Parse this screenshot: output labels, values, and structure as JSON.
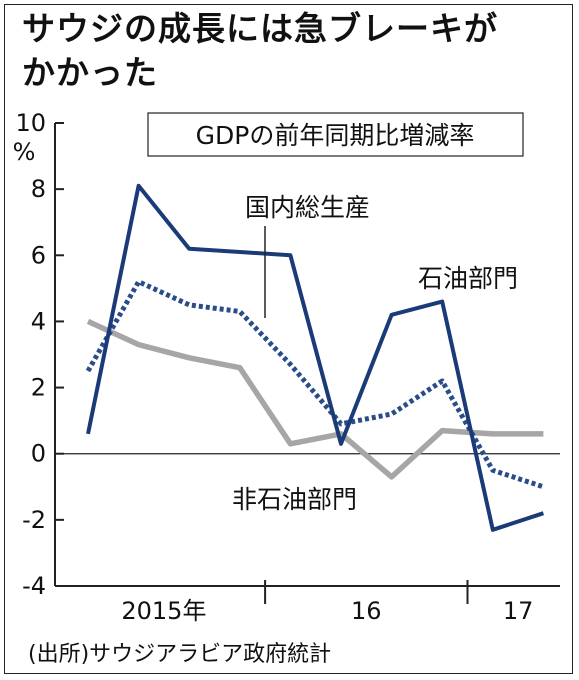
{
  "title_lines": [
    "サウジの成長には急ブレーキが",
    "かかった"
  ],
  "source": "(出所)サウジアラビア政府統計",
  "chart_data": {
    "type": "line",
    "legend_box": "GDPの前年同期比増減率",
    "ylabel": "%",
    "ylim": [
      -4,
      10
    ],
    "yticks": [
      -4,
      -2,
      0,
      2,
      4,
      6,
      8,
      10
    ],
    "x_groups": [
      {
        "label": "2015年",
        "start": 0,
        "end": 4
      },
      {
        "label": "16",
        "start": 4,
        "end": 8
      },
      {
        "label": "17",
        "start": 8,
        "end": 10
      }
    ],
    "x": [
      0,
      1,
      2,
      3,
      4,
      5,
      6,
      7,
      8,
      9
    ],
    "series": [
      {
        "name": "石油部門",
        "color": "#1a3a78",
        "style": "solid",
        "values": [
          0.6,
          8.1,
          6.2,
          6.1,
          6.0,
          0.3,
          4.2,
          4.6,
          -2.3,
          -1.8
        ]
      },
      {
        "name": "国内総生産",
        "color": "#2a4c8a",
        "style": "dotted",
        "values": [
          2.5,
          5.2,
          4.5,
          4.3,
          2.7,
          0.9,
          1.2,
          2.2,
          -0.5,
          -1.0
        ]
      },
      {
        "name": "非石油部門",
        "color": "#a6a6a6",
        "style": "solid",
        "values": [
          4.0,
          3.3,
          2.9,
          2.6,
          0.3,
          0.6,
          -0.7,
          0.7,
          0.6,
          0.6
        ]
      }
    ]
  }
}
